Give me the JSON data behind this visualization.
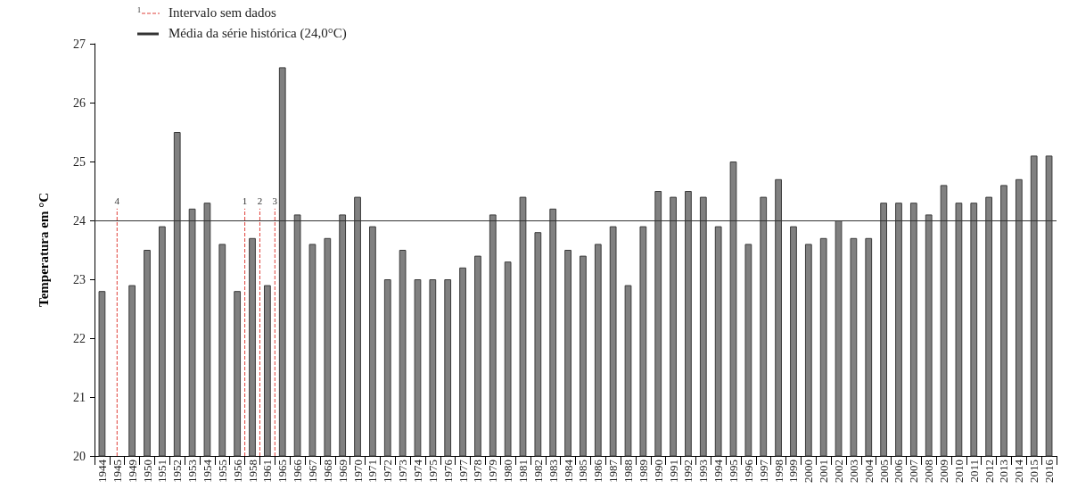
{
  "chart_data": {
    "type": "bar",
    "ylabel": "Temperatura em °C",
    "categories": [
      "1944",
      "1945",
      "1949",
      "1950",
      "1951",
      "1952",
      "1953",
      "1954",
      "1955",
      "1956",
      "1958",
      "1961",
      "1965",
      "1966",
      "1967",
      "1968",
      "1969",
      "1970",
      "1971",
      "1972",
      "1973",
      "1974",
      "1975",
      "1976",
      "1977",
      "1978",
      "1979",
      "1980",
      "1981",
      "1982",
      "1983",
      "1984",
      "1985",
      "1986",
      "1987",
      "1988",
      "1989",
      "1990",
      "1991",
      "1992",
      "1993",
      "1994",
      "1995",
      "1996",
      "1997",
      "1998",
      "1999",
      "2000",
      "2001",
      "2002",
      "2003",
      "2004",
      "2005",
      "2006",
      "2007",
      "2008",
      "2009",
      "2010",
      "2011",
      "2012",
      "2013",
      "2014",
      "2015",
      "2016"
    ],
    "values": [
      22.8,
      null,
      22.9,
      23.5,
      23.9,
      25.5,
      24.2,
      24.3,
      23.6,
      22.8,
      23.7,
      22.9,
      26.6,
      24.1,
      23.6,
      23.7,
      24.1,
      24.4,
      23.9,
      23.0,
      23.5,
      23.0,
      23.0,
      23.0,
      23.2,
      23.4,
      24.1,
      23.3,
      24.4,
      23.8,
      24.2,
      23.5,
      23.4,
      23.6,
      23.9,
      22.9,
      23.9,
      24.5,
      24.4,
      24.5,
      24.4,
      23.9,
      25.0,
      23.6,
      24.4,
      24.7,
      23.9,
      23.6,
      23.7,
      24.0,
      23.7,
      23.7,
      24.3,
      24.3,
      24.3,
      24.1,
      24.6,
      24.3,
      24.3,
      24.4,
      24.6,
      24.7,
      25.1,
      25.1
    ],
    "color": "#808080",
    "ylim": [
      20,
      27
    ],
    "yticks": [
      20,
      21,
      22,
      23,
      24,
      25,
      26,
      27
    ],
    "ref_lines": [
      {
        "axis": "x",
        "value": "1945",
        "label": "4",
        "color": "#e0403a",
        "line_style": "dashed"
      },
      {
        "axis": "y",
        "value": 24,
        "label": "Média da série histórica (24,0°C)",
        "color": "#333333",
        "line_style": "solid"
      }
    ],
    "annotations": [
      "Intervalo sem dados",
      "1",
      "2",
      "3"
    ]
  }
}
